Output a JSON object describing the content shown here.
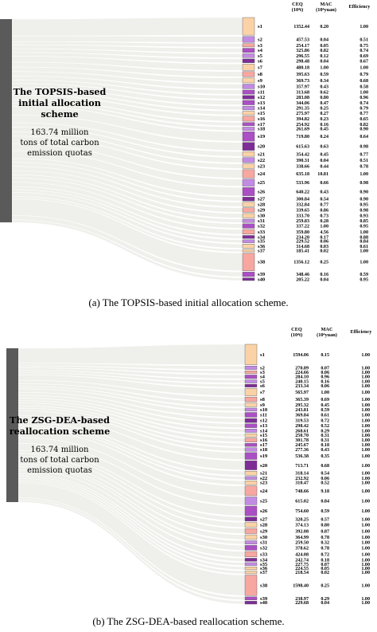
{
  "colors": {
    "source": "#5a5a5a",
    "flow": "#efefeb",
    "palette": [
      "#fbd2a6",
      "#f7a7a0",
      "#c28be3",
      "#ab4fc4",
      "#7e2d97"
    ]
  },
  "panels": [
    {
      "caption": "(a) The TOPSIS-based initial allocation scheme.",
      "source_title_line1": "The TOPSIS-based",
      "source_title_line2": "initial allocation scheme",
      "source_sub_line1": "163.74 million",
      "source_sub_line2": "tons of total carbon",
      "source_sub_line3": "emission quotas",
      "headers": {
        "ceq": "CEQ",
        "ceq_unit": "(10⁴t)",
        "mac": "MAC",
        "mac_unit": "(10⁴yuan)",
        "eff": "Efficiency"
      },
      "rows": [
        {
          "s": "s1",
          "ceq": "1352.44",
          "mac": "0.20",
          "eff": "1.00",
          "c": 0
        },
        {
          "s": "s2",
          "ceq": "457.53",
          "mac": "0.04",
          "eff": "0.51",
          "c": 2
        },
        {
          "s": "s3",
          "ceq": "254.17",
          "mac": "0.05",
          "eff": "0.75",
          "c": 1
        },
        {
          "s": "s4",
          "ceq": "325.86",
          "mac": "0.82",
          "eff": "0.74",
          "c": 3
        },
        {
          "s": "s5",
          "ceq": "296.55",
          "mac": "0.12",
          "eff": "0.69",
          "c": 2
        },
        {
          "s": "s6",
          "ceq": "298.48",
          "mac": "0.04",
          "eff": "0.67",
          "c": 4
        },
        {
          "s": "s7",
          "ceq": "480.18",
          "mac": "1.00",
          "eff": "1.00",
          "c": 0
        },
        {
          "s": "s8",
          "ceq": "395.63",
          "mac": "0.59",
          "eff": "0.79",
          "c": 1
        },
        {
          "s": "s9",
          "ceq": "369.73",
          "mac": "0.34",
          "eff": "0.68",
          "c": 0
        },
        {
          "s": "s10",
          "ceq": "357.97",
          "mac": "0.43",
          "eff": "0.58",
          "c": 2
        },
        {
          "s": "s11",
          "ceq": "313.68",
          "mac": "0.62",
          "eff": "1.00",
          "c": 3
        },
        {
          "s": "s12",
          "ceq": "283.08",
          "mac": "0.80",
          "eff": "0.96",
          "c": 4
        },
        {
          "s": "s13",
          "ceq": "344.06",
          "mac": "0.47",
          "eff": "0.74",
          "c": 3
        },
        {
          "s": "s14",
          "ceq": "291.35",
          "mac": "0.25",
          "eff": "0.79",
          "c": 2
        },
        {
          "s": "s15",
          "ceq": "275.97",
          "mac": "0.27",
          "eff": "0.77",
          "c": 0
        },
        {
          "s": "s16",
          "ceq": "394.82",
          "mac": "0.23",
          "eff": "0.65",
          "c": 1
        },
        {
          "s": "s17",
          "ceq": "254.92",
          "mac": "0.16",
          "eff": "0.82",
          "c": 3
        },
        {
          "s": "s18",
          "ceq": "261.69",
          "mac": "0.45",
          "eff": "0.90",
          "c": 2
        },
        {
          "s": "s19",
          "ceq": "719.80",
          "mac": "0.24",
          "eff": "0.64",
          "c": 3
        },
        {
          "s": "s20",
          "ceq": "615.63",
          "mac": "0.63",
          "eff": "0.98",
          "c": 4
        },
        {
          "s": "s21",
          "ceq": "354.42",
          "mac": "0.45",
          "eff": "0.77",
          "c": 0
        },
        {
          "s": "s22",
          "ceq": "390.31",
          "mac": "0.04",
          "eff": "0.51",
          "c": 2
        },
        {
          "s": "s23",
          "ceq": "338.66",
          "mac": "0.44",
          "eff": "0.78",
          "c": 0
        },
        {
          "s": "s24",
          "ceq": "635.18",
          "mac": "10.81",
          "eff": "1.00",
          "c": 1
        },
        {
          "s": "s25",
          "ceq": "533.96",
          "mac": "0.66",
          "eff": "0.98",
          "c": 2
        },
        {
          "s": "s26",
          "ceq": "640.22",
          "mac": "0.43",
          "eff": "0.90",
          "c": 3
        },
        {
          "s": "s27",
          "ceq": "300.84",
          "mac": "0.54",
          "eff": "0.90",
          "c": 4
        },
        {
          "s": "s28",
          "ceq": "332.84",
          "mac": "0.77",
          "eff": "0.95",
          "c": 0
        },
        {
          "s": "s29",
          "ceq": "339.65",
          "mac": "0.86",
          "eff": "0.98",
          "c": 1
        },
        {
          "s": "s30",
          "ceq": "333.70",
          "mac": "0.73",
          "eff": "0.93",
          "c": 0
        },
        {
          "s": "s31",
          "ceq": "259.83",
          "mac": "0.28",
          "eff": "0.85",
          "c": 2
        },
        {
          "s": "s32",
          "ceq": "337.22",
          "mac": "1.00",
          "eff": "0.95",
          "c": 3
        },
        {
          "s": "s33",
          "ceq": "359.80",
          "mac": "4.56",
          "eff": "1.00",
          "c": 1
        },
        {
          "s": "s34",
          "ceq": "234.20",
          "mac": "0.17",
          "eff": "0.88",
          "c": 4
        },
        {
          "s": "s35",
          "ceq": "229.52",
          "mac": "0.06",
          "eff": "0.84",
          "c": 2
        },
        {
          "s": "s36",
          "ceq": "314.68",
          "mac": "0.03",
          "eff": "0.61",
          "c": 0
        },
        {
          "s": "s37",
          "ceq": "185.41",
          "mac": "0.02",
          "eff": "1.00",
          "c": 0
        },
        {
          "s": "s38",
          "ceq": "1356.12",
          "mac": "0.25",
          "eff": "1.00",
          "c": 1
        },
        {
          "s": "s39",
          "ceq": "348.46",
          "mac": "0.16",
          "eff": "0.59",
          "c": 3
        },
        {
          "s": "s40",
          "ceq": "205.22",
          "mac": "0.04",
          "eff": "0.95",
          "c": 4
        }
      ]
    },
    {
      "caption": "(b) The ZSG-DEA-based reallocation scheme.",
      "source_title_line1": "The ZSG-DEA-based",
      "source_title_line2": "reallocation scheme",
      "source_sub_line1": "163.74 million",
      "source_sub_line2": "tons of total carbon",
      "source_sub_line3": "emission quotas",
      "headers": {
        "ceq": "CEQ",
        "ceq_unit": "(10⁴t)",
        "mac": "MAC",
        "mac_unit": "(10⁴yuan)",
        "eff": "Efficiency"
      },
      "rows": [
        {
          "s": "s1",
          "ceq": "1594.06",
          "mac": "0.15",
          "eff": "1.00",
          "c": 0
        },
        {
          "s": "s2",
          "ceq": "270.89",
          "mac": "0.07",
          "eff": "1.00",
          "c": 2
        },
        {
          "s": "s3",
          "ceq": "224.66",
          "mac": "0.06",
          "eff": "1.00",
          "c": 1
        },
        {
          "s": "s4",
          "ceq": "284.10",
          "mac": "0.96",
          "eff": "1.00",
          "c": 3
        },
        {
          "s": "s5",
          "ceq": "240.15",
          "mac": "0.16",
          "eff": "1.00",
          "c": 2
        },
        {
          "s": "s6",
          "ceq": "233.34",
          "mac": "0.06",
          "eff": "1.00",
          "c": 4
        },
        {
          "s": "s7",
          "ceq": "565.97",
          "mac": "1.00",
          "eff": "1.00",
          "c": 0
        },
        {
          "s": "s8",
          "ceq": "365.39",
          "mac": "0.69",
          "eff": "1.00",
          "c": 1
        },
        {
          "s": "s9",
          "ceq": "295.32",
          "mac": "0.45",
          "eff": "1.00",
          "c": 0
        },
        {
          "s": "s10",
          "ceq": "243.81",
          "mac": "0.59",
          "eff": "1.00",
          "c": 2
        },
        {
          "s": "s11",
          "ceq": "369.84",
          "mac": "0.61",
          "eff": "1.00",
          "c": 3
        },
        {
          "s": "s12",
          "ceq": "319.53",
          "mac": "0.72",
          "eff": "1.00",
          "c": 4
        },
        {
          "s": "s13",
          "ceq": "298.42",
          "mac": "0.52",
          "eff": "1.00",
          "c": 3
        },
        {
          "s": "s14",
          "ceq": "268.61",
          "mac": "0.29",
          "eff": "1.00",
          "c": 2
        },
        {
          "s": "s15",
          "ceq": "250.70",
          "mac": "0.31",
          "eff": "1.00",
          "c": 0
        },
        {
          "s": "s16",
          "ceq": "301.78",
          "mac": "0.31",
          "eff": "1.00",
          "c": 1
        },
        {
          "s": "s17",
          "ceq": "245.67",
          "mac": "0.18",
          "eff": "1.00",
          "c": 3
        },
        {
          "s": "s18",
          "ceq": "277.36",
          "mac": "0.43",
          "eff": "1.00",
          "c": 2
        },
        {
          "s": "s19",
          "ceq": "536.38",
          "mac": "0.35",
          "eff": "1.00",
          "c": 3
        },
        {
          "s": "s20",
          "ceq": "713.71",
          "mac": "0.68",
          "eff": "1.00",
          "c": 4
        },
        {
          "s": "s21",
          "ceq": "318.14",
          "mac": "0.54",
          "eff": "1.00",
          "c": 0
        },
        {
          "s": "s22",
          "ceq": "232.92",
          "mac": "0.06",
          "eff": "1.00",
          "c": 2
        },
        {
          "s": "s23",
          "ceq": "310.47",
          "mac": "0.52",
          "eff": "1.00",
          "c": 0
        },
        {
          "s": "s24",
          "ceq": "748.66",
          "mac": "9.18",
          "eff": "1.00",
          "c": 1
        },
        {
          "s": "s25",
          "ceq": "615.02",
          "mac": "0.84",
          "eff": "1.00",
          "c": 2
        },
        {
          "s": "s26",
          "ceq": "754.60",
          "mac": "0.59",
          "eff": "1.00",
          "c": 3
        },
        {
          "s": "s27",
          "ceq": "320.25",
          "mac": "0.57",
          "eff": "1.00",
          "c": 4
        },
        {
          "s": "s28",
          "ceq": "374.13",
          "mac": "0.80",
          "eff": "1.00",
          "c": 0
        },
        {
          "s": "s29",
          "ceq": "392.08",
          "mac": "0.87",
          "eff": "1.00",
          "c": 1
        },
        {
          "s": "s30",
          "ceq": "364.99",
          "mac": "0.78",
          "eff": "1.00",
          "c": 0
        },
        {
          "s": "s31",
          "ceq": "259.50",
          "mac": "0.32",
          "eff": "1.00",
          "c": 2
        },
        {
          "s": "s32",
          "ceq": "378.62",
          "mac": "0.78",
          "eff": "1.00",
          "c": 3
        },
        {
          "s": "s33",
          "ceq": "424.08",
          "mac": "0.72",
          "eff": "1.00",
          "c": 1
        },
        {
          "s": "s34",
          "ceq": "242.74",
          "mac": "0.18",
          "eff": "1.00",
          "c": 4
        },
        {
          "s": "s35",
          "ceq": "227.75",
          "mac": "0.07",
          "eff": "1.00",
          "c": 2
        },
        {
          "s": "s36",
          "ceq": "224.55",
          "mac": "0.05",
          "eff": "1.00",
          "c": 0
        },
        {
          "s": "s37",
          "ceq": "218.54",
          "mac": "0.02",
          "eff": "1.00",
          "c": 0
        },
        {
          "s": "s38",
          "ceq": "1598.40",
          "mac": "0.25",
          "eff": "1.00",
          "c": 1
        },
        {
          "s": "s39",
          "ceq": "238.97",
          "mac": "0.29",
          "eff": "1.00",
          "c": 3
        },
        {
          "s": "s40",
          "ceq": "229.68",
          "mac": "0.04",
          "eff": "1.00",
          "c": 4
        }
      ]
    }
  ]
}
